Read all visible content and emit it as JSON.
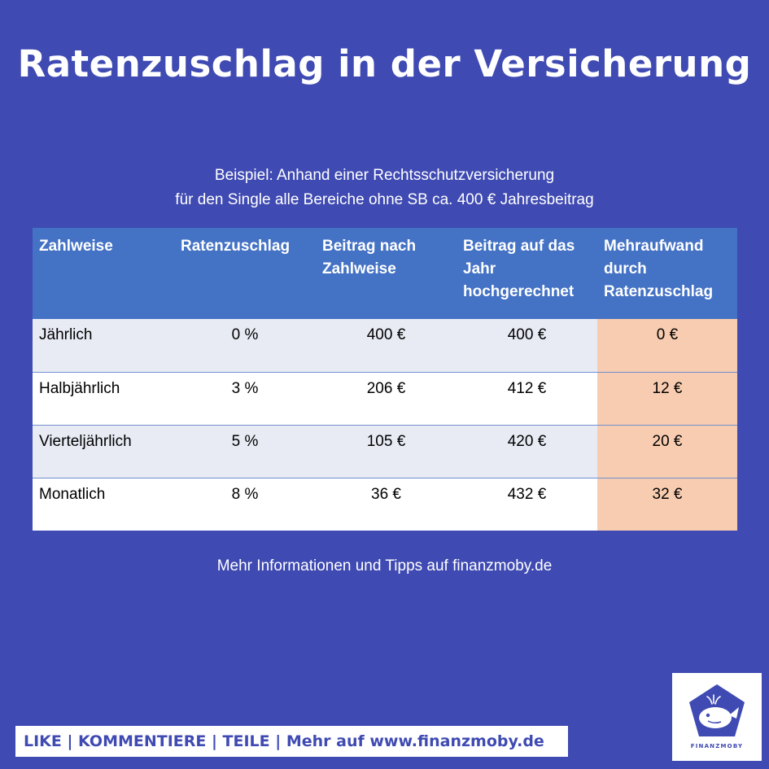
{
  "title": "Ratenzuschlag in der Versicherung",
  "subtitle": {
    "line1": "Beispiel: Anhand einer Rechtsschutzversicherung",
    "line2": "für den Single alle Bereiche ohne SB ca. 400 € Jahresbeitrag"
  },
  "table": {
    "headers": [
      [
        "Zahlweise"
      ],
      [
        "Ratenzuschlag"
      ],
      [
        "Beitrag nach",
        "Zahlweise"
      ],
      [
        "Beitrag auf das",
        "Jahr",
        "hochgerechnet"
      ],
      [
        "Mehraufwand",
        "durch",
        "Ratenzuschlag"
      ]
    ],
    "rows": [
      [
        "Jährlich",
        "0 %",
        "400 €",
        "400 €",
        "0 €"
      ],
      [
        "Halbjährlich",
        "3 %",
        "206 €",
        "412 €",
        "12 €"
      ],
      [
        "Vierteljährlich",
        "5 %",
        "105 €",
        "420 €",
        "20 €"
      ],
      [
        "Monatlich",
        "8 %",
        "36 €",
        "432 €",
        "32 €"
      ]
    ]
  },
  "footer_note": "Mehr Informationen und Tipps auf finanzmoby.de",
  "cta": "LIKE | KOMMENTIERE | TEILE | Mehr auf www.finanzmoby.de",
  "logo": {
    "text": "FINANZMOBY",
    "icon": "whale-icon"
  },
  "colors": {
    "background": "#3f4ab2",
    "table_header": "#4472c4",
    "row_alt": "#e8ebf4",
    "highlight_column": "#f8ccb0"
  }
}
